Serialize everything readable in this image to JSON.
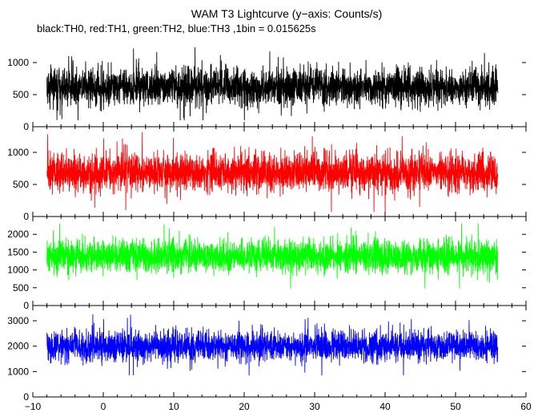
{
  "title": "WAM T3 Lightcurve (y−axis: Counts/s)",
  "subtitle": "black:TH0, red:TH1, green:TH2, blue:TH3 ,1bin = 0.015625s",
  "chart_data": {
    "type": "line",
    "title": "WAM T3 Lightcurve (y−axis: Counts/s)",
    "subtitle": "black:TH0, red:TH1, green:TH2, blue:TH3 ,1bin = 0.015625s",
    "xlabel": "",
    "ylabel": "",
    "bin_seconds": 0.015625,
    "x_axis": {
      "xlim": [
        -10,
        60
      ],
      "ticks": [
        -10,
        0,
        10,
        20,
        30,
        40,
        50,
        60
      ],
      "tick_labels": [
        "−10",
        "0",
        "10",
        "20",
        "30",
        "40",
        "50",
        "60"
      ]
    },
    "data_x_range": [
      -8,
      56
    ],
    "grid": false,
    "legend": "none",
    "panels": [
      {
        "series_name": "TH0",
        "color": "#000000",
        "ylim": [
          0,
          1400
        ],
        "yticks": [
          0,
          500,
          1000
        ],
        "ytick_labels": [
          "0",
          "500",
          "1000"
        ],
        "baseline": 620,
        "typical_low": 350,
        "typical_high": 1000,
        "peak": 1380,
        "trough": 100
      },
      {
        "series_name": "TH1",
        "color": "#ff0000",
        "ylim": [
          0,
          1400
        ],
        "yticks": [
          0,
          500,
          1000
        ],
        "ytick_labels": [
          "0",
          "500",
          "1000"
        ],
        "baseline": 690,
        "typical_low": 400,
        "typical_high": 1050,
        "peak": 1340,
        "trough": 70
      },
      {
        "series_name": "TH2",
        "color": "#00ff00",
        "ylim": [
          0,
          2500
        ],
        "yticks": [
          0,
          500,
          1000,
          1500,
          2000
        ],
        "ytick_labels": [
          "0",
          "500",
          "1000",
          "1500",
          "2000"
        ],
        "baseline": 1380,
        "typical_low": 900,
        "typical_high": 1900,
        "peak": 2400,
        "trough": 480
      },
      {
        "series_name": "TH3",
        "color": "#0000ff",
        "ylim": [
          0,
          3600
        ],
        "yticks": [
          0,
          1000,
          2000,
          3000
        ],
        "ytick_labels": [
          "0",
          "1000",
          "2000",
          "3000"
        ],
        "baseline": 2000,
        "typical_low": 1400,
        "typical_high": 2700,
        "peak": 3300,
        "trough": 850
      }
    ]
  }
}
